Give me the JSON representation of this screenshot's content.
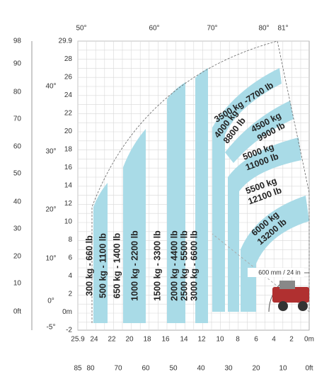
{
  "angle_top": [
    "50°",
    "60°",
    "70°",
    "80°",
    "81°"
  ],
  "feet_left": [
    "98",
    "90",
    "80",
    "70",
    "60",
    "50",
    "40",
    "30",
    "20",
    "10",
    "0ft"
  ],
  "angle_left": [
    "40°",
    "30°",
    "20°",
    "10°",
    "0°",
    "-5°"
  ],
  "meters_left": [
    "29.9",
    "28",
    "26",
    "24",
    "22",
    "20",
    "18",
    "16",
    "14",
    "12",
    "10",
    "8",
    "6",
    "4",
    "2",
    "0m",
    "-2"
  ],
  "meters_bottom": [
    "25.9",
    "24",
    "22",
    "20",
    "18",
    "16",
    "14",
    "12",
    "10",
    "8",
    "6",
    "4",
    "2",
    "0m"
  ],
  "feet_bottom": [
    "85",
    "80",
    "70",
    "60",
    "50",
    "40",
    "30",
    "20",
    "10",
    "0ft"
  ],
  "loads_vertical": [
    "300 kg - 660 lb",
    "500 kg - 1100 lb",
    "650 kg - 1400 lb",
    "1000 kg - 2200 lb",
    "1500 kg - 3300 lb",
    "2000 kg - 4400 lb",
    "2500 kg - 5500 lb",
    "3000 kg - 6600 lb"
  ],
  "loads_diagonal": [
    [
      "3500 kg -7700 lb"
    ],
    [
      "4000 kg",
      "8800 lb"
    ],
    [
      "4500 kg",
      "9900 lb"
    ],
    [
      "5000 kg",
      "11000 lb"
    ],
    [
      "5500 kg",
      "12100 lb"
    ],
    [
      "6000 kg",
      "13200 lb"
    ]
  ],
  "tire_note": "600 mm / 24 in"
}
